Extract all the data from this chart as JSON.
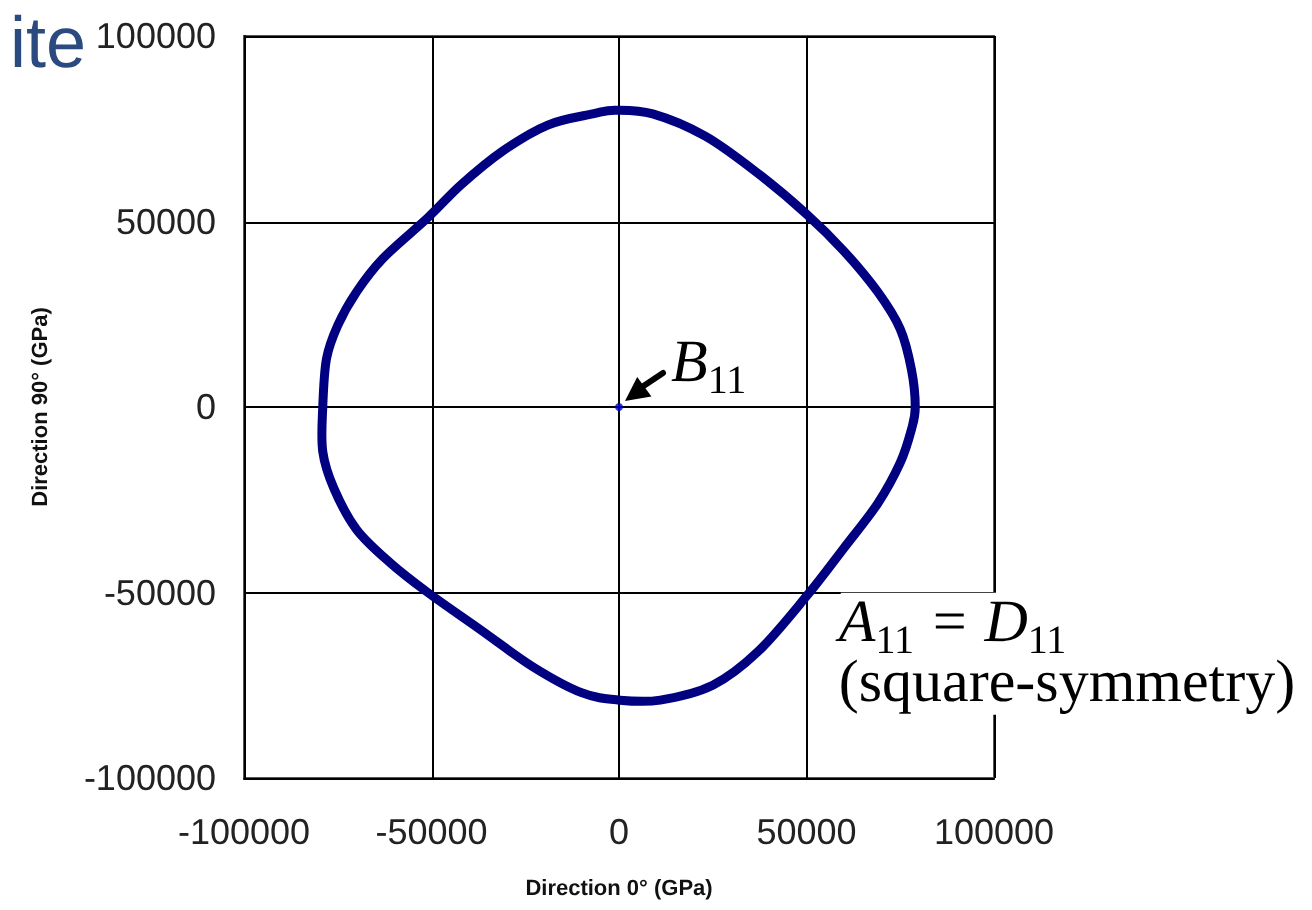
{
  "chart_data": {
    "type": "scatter",
    "title": "ite",
    "xlabel": "Direction 0° (GPa)",
    "ylabel": "Direction 90° (GPa)",
    "xlim": [
      -100000,
      100000
    ],
    "ylim": [
      -100000,
      100000
    ],
    "xticks": [
      -100000,
      -50000,
      0,
      50000,
      100000
    ],
    "yticks": [
      -100000,
      -50000,
      0,
      50000,
      100000
    ],
    "grid": true,
    "marker": "circle",
    "x": [
      0
    ],
    "values": [
      0
    ],
    "color": "#0000cc",
    "annotations": [
      {
        "text": "B$_{11}$",
        "x": 0,
        "y": 0
      },
      "A$_{11}$ = D$_{11}$\n(square-symmetry)"
    ]
  }
}
